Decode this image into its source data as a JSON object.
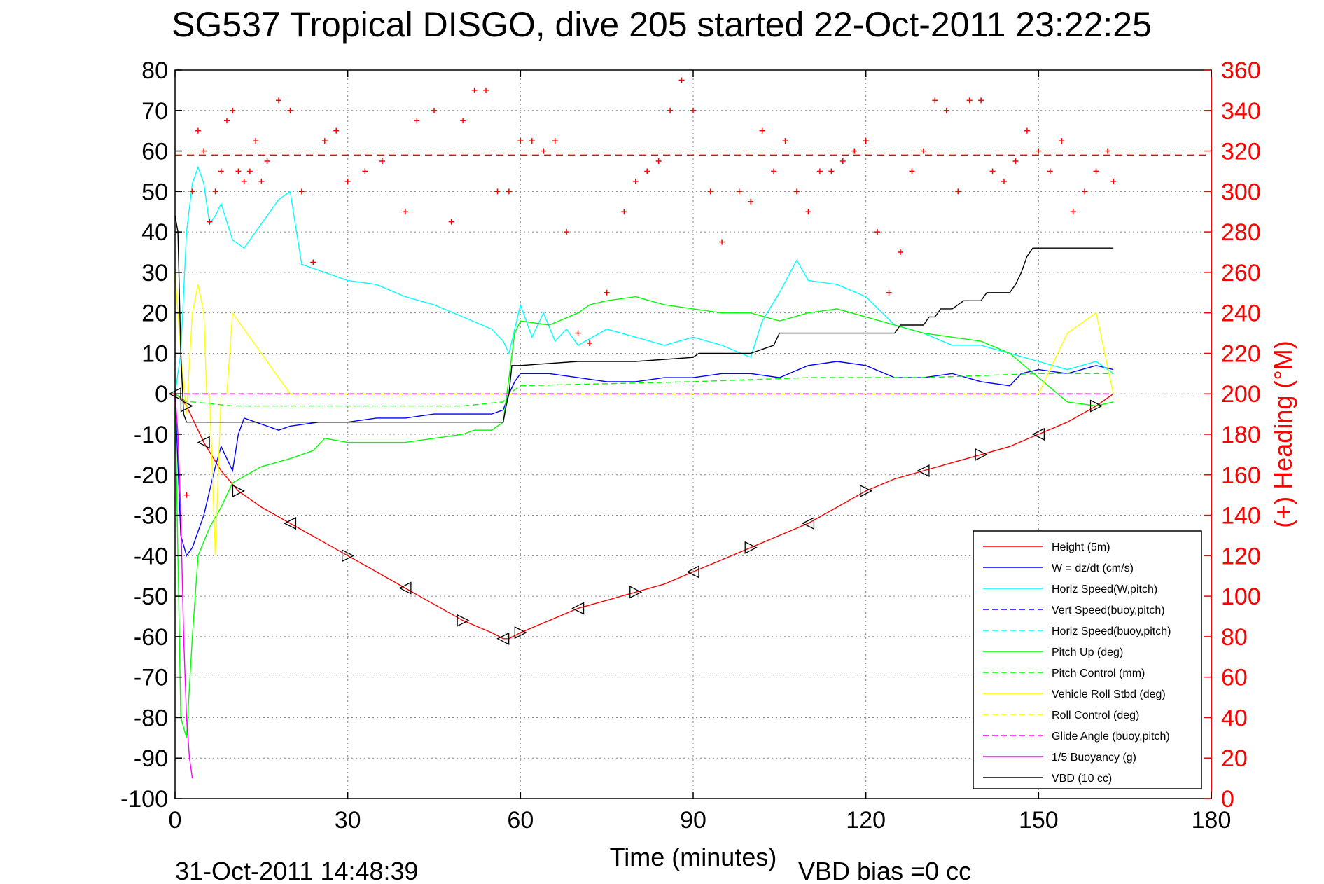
{
  "chart_data": {
    "type": "line",
    "title": "SG537 Tropical DISGO, dive 205 started 22-Oct-2011 23:22:25",
    "xlabel": "Time (minutes)",
    "ylabel_right": "(+) Heading (°M)",
    "footer_date": "31-Oct-2011 14:48:39",
    "footer_vbd": "VBD bias =0 cc",
    "xlim": [
      0,
      180
    ],
    "ylim": [
      -100,
      80
    ],
    "y2lim": [
      0,
      360
    ],
    "xticks": [
      0,
      30,
      60,
      90,
      120,
      150,
      180
    ],
    "yticks": [
      80,
      70,
      60,
      50,
      40,
      30,
      20,
      10,
      0,
      -10,
      -20,
      -30,
      -40,
      -50,
      -60,
      -70,
      -80,
      -90,
      -100
    ],
    "y2ticks": [
      360,
      340,
      320,
      300,
      280,
      260,
      240,
      220,
      200,
      180,
      160,
      140,
      120,
      100,
      80,
      60,
      40,
      20,
      0
    ],
    "grid": true,
    "legend_position": "lower-right",
    "heading_reference": 318,
    "series": [
      {
        "name": "Height (5m)",
        "color": "#ff0000",
        "style": "solid",
        "x": [
          0,
          1,
          2,
          3,
          5,
          8,
          11,
          15,
          20,
          25,
          30,
          35,
          40,
          45,
          50,
          55,
          57,
          58,
          60,
          65,
          70,
          75,
          80,
          85,
          90,
          95,
          100,
          105,
          110,
          115,
          120,
          125,
          130,
          135,
          140,
          145,
          150,
          155,
          160,
          163
        ],
        "y": [
          0,
          -1,
          -3,
          -6,
          -12,
          -19,
          -24,
          -28,
          -32,
          -36,
          -40,
          -44,
          -48,
          -52,
          -56,
          -59,
          -60.5,
          -60.5,
          -59,
          -56,
          -53,
          -51,
          -49,
          -47,
          -44,
          -41,
          -38,
          -35,
          -32,
          -28,
          -24,
          -21,
          -19,
          -17,
          -15,
          -13,
          -10,
          -7,
          -3,
          0
        ]
      },
      {
        "name": "W = dz/dt (cm/s)",
        "color": "#0000ff",
        "style": "solid",
        "x": [
          0,
          1,
          2,
          3,
          4,
          5,
          6,
          7,
          8,
          9,
          10,
          11,
          12,
          14,
          16,
          18,
          20,
          25,
          30,
          35,
          40,
          45,
          50,
          55,
          57,
          58,
          59,
          60,
          65,
          70,
          75,
          80,
          85,
          90,
          95,
          100,
          105,
          110,
          115,
          120,
          125,
          130,
          135,
          140,
          145,
          147,
          150,
          155,
          160,
          163
        ],
        "y": [
          0,
          -35,
          -40,
          -38,
          -34,
          -30,
          -24,
          -18,
          -13,
          -16,
          -19,
          -10,
          -6,
          -7,
          -8,
          -9,
          -8,
          -7,
          -7,
          -6,
          -6,
          -5,
          -5,
          -5,
          -4,
          0,
          3,
          5,
          5,
          4,
          3,
          3,
          4,
          4,
          5,
          5,
          4,
          7,
          8,
          7,
          4,
          4,
          5,
          3,
          2,
          5,
          6,
          5,
          7,
          6
        ]
      },
      {
        "name": "Horiz Speed(W,pitch)",
        "color": "#00ffff",
        "style": "solid",
        "x": [
          0,
          1,
          2,
          3,
          4,
          5,
          6,
          7,
          8,
          10,
          12,
          14,
          16,
          18,
          20,
          22,
          24,
          26,
          28,
          30,
          35,
          40,
          45,
          50,
          55,
          57,
          58,
          60,
          62,
          64,
          66,
          68,
          70,
          75,
          80,
          85,
          90,
          95,
          100,
          102,
          105,
          108,
          110,
          115,
          120,
          125,
          130,
          135,
          140,
          145,
          150,
          155,
          160,
          163
        ],
        "y": [
          0,
          10,
          40,
          52,
          56,
          52,
          42,
          44,
          47,
          38,
          36,
          40,
          44,
          48,
          50,
          32,
          31,
          30,
          29,
          28,
          27,
          24,
          22,
          19,
          16,
          13,
          10,
          22,
          14,
          20,
          13,
          16,
          12,
          16,
          14,
          12,
          14,
          12,
          9,
          18,
          25,
          33,
          28,
          27,
          24,
          17,
          15,
          12,
          12,
          10,
          8,
          6,
          8,
          5
        ]
      },
      {
        "name": "Vert Speed(buoy,pitch)",
        "color": "#0000ff",
        "style": "dashed",
        "x": [
          0,
          5,
          163
        ],
        "y": [
          0,
          0,
          0
        ]
      },
      {
        "name": "Horiz Speed(buoy,pitch)",
        "color": "#00ffff",
        "style": "dashed",
        "x": [
          0,
          5,
          163
        ],
        "y": [
          0,
          0,
          0
        ]
      },
      {
        "name": "Pitch Up (deg)",
        "color": "#00ff00",
        "style": "solid",
        "x": [
          0,
          1,
          2,
          3,
          4,
          6,
          8,
          10,
          15,
          20,
          24,
          26,
          30,
          35,
          40,
          45,
          50,
          52,
          55,
          57,
          58,
          59,
          60,
          65,
          70,
          72,
          75,
          80,
          85,
          90,
          95,
          100,
          105,
          110,
          115,
          120,
          125,
          130,
          135,
          140,
          145,
          150,
          155,
          160,
          163
        ],
        "y": [
          0,
          -80,
          -85,
          -60,
          -40,
          -33,
          -28,
          -22,
          -18,
          -16,
          -14,
          -11,
          -12,
          -12,
          -12,
          -11,
          -10,
          -9,
          -9,
          -7,
          4,
          15,
          18,
          17,
          20,
          22,
          23,
          24,
          22,
          21,
          20,
          20,
          18,
          20,
          21,
          19,
          17,
          15,
          14,
          13,
          10,
          4,
          -2,
          -3,
          -2
        ]
      },
      {
        "name": "Pitch Control (mm)",
        "color": "#00ff00",
        "style": "dashed",
        "x": [
          0,
          1,
          2,
          3,
          10,
          30,
          50,
          57,
          58,
          60,
          90,
          110,
          130,
          150,
          163
        ],
        "y": [
          0,
          -1,
          -2,
          -2,
          -3,
          -3,
          -3,
          -2,
          0,
          2,
          3,
          4,
          4,
          5,
          5
        ]
      },
      {
        "name": "Vehicle Roll Stbd (deg)",
        "color": "#ffff00",
        "style": "solid",
        "x": [
          0,
          1,
          2,
          3,
          4,
          5,
          5.5,
          6,
          7,
          8,
          9,
          10,
          20,
          30,
          40,
          50,
          58,
          60,
          70,
          80,
          90,
          100,
          110,
          120,
          130,
          140,
          150,
          155,
          160,
          163
        ],
        "y": [
          30,
          10,
          -5,
          20,
          27,
          20,
          0,
          0,
          -40,
          0,
          0,
          20,
          0,
          0,
          0,
          0,
          0,
          0,
          0,
          0,
          0,
          0,
          0,
          0,
          0,
          0,
          0,
          15,
          20,
          0
        ]
      },
      {
        "name": "Roll Control (deg)",
        "color": "#ffff00",
        "style": "dashed",
        "x": [
          0,
          10,
          30,
          60,
          90,
          120,
          150,
          163
        ],
        "y": [
          0,
          0,
          0,
          0,
          0,
          0,
          0,
          0
        ]
      },
      {
        "name": "Glide Angle (buoy,pitch)",
        "color": "#ff00ff",
        "style": "dashed",
        "x": [
          0,
          5,
          163
        ],
        "y": [
          0,
          0,
          0
        ]
      },
      {
        "name": "1/5 Buoyancy (g)",
        "color": "#ff00ff",
        "style": "solid",
        "x": [
          0,
          0.5,
          1,
          1.5,
          2,
          2.5,
          3
        ],
        "y": [
          0,
          -10,
          -30,
          -60,
          -80,
          -90,
          -95
        ]
      },
      {
        "name": "VBD (10 cc)",
        "color": "#000000",
        "style": "solid",
        "x": [
          0,
          0.5,
          1,
          1.5,
          2,
          57,
          57.5,
          58,
          58.5,
          60,
          70,
          80,
          90,
          91,
          100,
          104,
          105,
          120,
          125,
          126,
          130,
          131,
          132,
          133,
          135,
          137,
          140,
          141,
          142,
          145,
          146,
          147,
          148,
          149,
          150,
          155,
          160,
          163
        ],
        "y": [
          44,
          40,
          10,
          -5,
          -7,
          -7,
          -3,
          0,
          7,
          7,
          8,
          8,
          9,
          10,
          10,
          12,
          15,
          15,
          15,
          17,
          17,
          19,
          19,
          21,
          21,
          23,
          23,
          25,
          25,
          25,
          27,
          30,
          34,
          36,
          36,
          36,
          36,
          36
        ]
      }
    ],
    "heading_series": {
      "name": "(+) Heading",
      "color": "#ff0000",
      "marker": "+",
      "x": [
        0,
        2,
        3,
        4,
        5,
        6,
        7,
        8,
        9,
        10,
        11,
        12,
        13,
        14,
        15,
        16,
        18,
        20,
        22,
        24,
        26,
        28,
        30,
        33,
        36,
        40,
        42,
        45,
        48,
        50,
        52,
        54,
        56,
        58,
        60,
        62,
        64,
        66,
        68,
        70,
        72,
        75,
        78,
        80,
        82,
        84,
        86,
        88,
        90,
        93,
        95,
        98,
        100,
        102,
        104,
        106,
        108,
        110,
        112,
        114,
        116,
        118,
        120,
        122,
        124,
        126,
        128,
        130,
        132,
        134,
        136,
        138,
        140,
        142,
        144,
        146,
        148,
        150,
        152,
        154,
        156,
        158,
        160,
        162,
        163
      ],
      "y": [
        200,
        150,
        300,
        330,
        320,
        285,
        300,
        310,
        335,
        340,
        310,
        305,
        310,
        325,
        305,
        315,
        345,
        340,
        300,
        265,
        325,
        330,
        305,
        310,
        315,
        290,
        335,
        340,
        285,
        335,
        350,
        350,
        300,
        300,
        325,
        325,
        320,
        325,
        280,
        230,
        225,
        250,
        290,
        305,
        310,
        315,
        340,
        355,
        340,
        300,
        275,
        300,
        295,
        330,
        310,
        325,
        300,
        290,
        310,
        310,
        315,
        320,
        325,
        280,
        250,
        270,
        310,
        320,
        345,
        340,
        300,
        345,
        345,
        310,
        305,
        315,
        330,
        320,
        310,
        325,
        290,
        300,
        310,
        320,
        305
      ]
    }
  }
}
